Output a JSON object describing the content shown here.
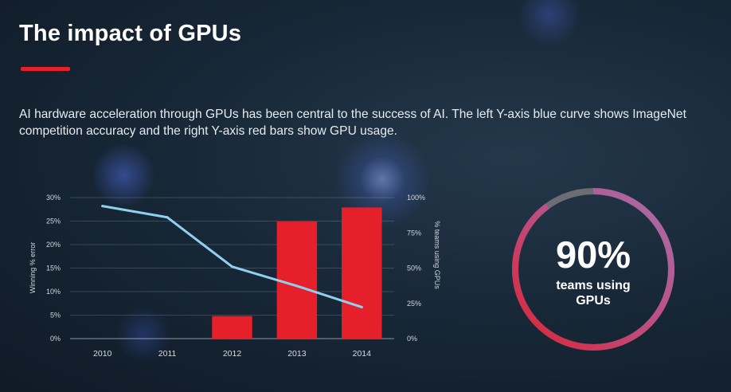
{
  "header": {
    "title": "The impact of GPUs",
    "subtitle": "AI hardware acceleration through GPUs has been central to the success of AI. The left Y-axis blue curve shows ImageNet competition accuracy and the right Y-axis red bars show GPU usage."
  },
  "colors": {
    "accent_red": "#e5202a",
    "line_blue": "#8fd0ee",
    "donut_gray": "#6c6c74",
    "donut_purple": "#a46fae",
    "donut_red": "#dd2333"
  },
  "chart_data": {
    "type": "bar+line",
    "categories": [
      "2010",
      "2011",
      "2012",
      "2013",
      "2014"
    ],
    "left_axis": {
      "label": "Winning % error",
      "ylim": [
        0,
        30
      ],
      "ticks": [
        "0%",
        "5%",
        "10%",
        "15%",
        "20%",
        "25%",
        "30%"
      ]
    },
    "right_axis": {
      "label": "% teams using GPUs",
      "ylim": [
        0,
        100
      ],
      "ticks": [
        "0%",
        "25%",
        "50%",
        "75%",
        "100%"
      ]
    },
    "series": [
      {
        "name": "Winning % error",
        "kind": "line",
        "axis": "left",
        "values": [
          28.2,
          25.8,
          15.3,
          11.2,
          6.7
        ]
      },
      {
        "name": "% teams using GPUs",
        "kind": "bar",
        "axis": "right",
        "values": [
          0,
          0,
          16,
          83,
          93
        ]
      }
    ]
  },
  "donut": {
    "value_text": "90%",
    "label_line1": "teams using",
    "label_line2": "GPUs",
    "value": 90
  }
}
